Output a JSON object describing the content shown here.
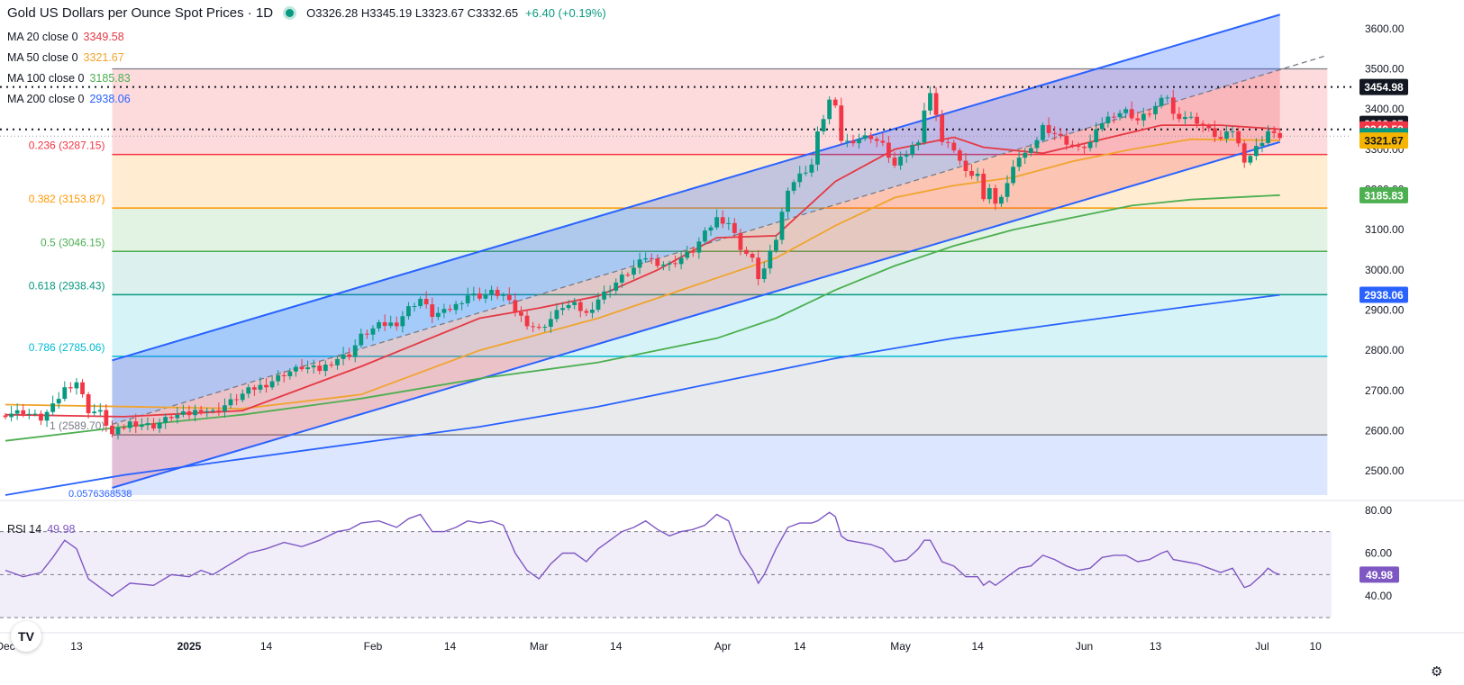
{
  "header": {
    "title": "Gold US Dollars per Ounce Spot Prices · 1D",
    "ohlc": "O3326.28 H3345.19 L3323.67 C3332.65",
    "change": "+6.40 (+0.19%)"
  },
  "ma_legend": [
    {
      "label": "MA 20 close 0",
      "value": "3349.58",
      "color": "#e53945"
    },
    {
      "label": "MA 50 close 0",
      "value": "3321.67",
      "color": "#f0a42e"
    },
    {
      "label": "MA 100 close 0",
      "value": "3185.83",
      "color": "#4caf50"
    },
    {
      "label": "MA 200 close 0",
      "value": "2938.06",
      "color": "#2962ff"
    }
  ],
  "rsi_legend": {
    "label": "RSI 14",
    "value": "49.98"
  },
  "logo_text": "TV",
  "settings_icon": "gear-icon",
  "chart_data": {
    "type": "candlestick",
    "price_axis": {
      "min": 2440,
      "max": 3640,
      "ticks": [
        "3600.00",
        "3500.00",
        "3400.00",
        "3300.00",
        "3200.00",
        "3100.00",
        "3000.00",
        "2900.00",
        "2800.00",
        "2700.00",
        "2600.00",
        "2500.00"
      ]
    },
    "x_axis": {
      "labels": [
        {
          "text": "Dec",
          "day": 0
        },
        {
          "text": "13",
          "day": 12
        },
        {
          "text": "2025",
          "day": 31
        },
        {
          "text": "14",
          "day": 44
        },
        {
          "text": "Feb",
          "day": 62
        },
        {
          "text": "14",
          "day": 75
        },
        {
          "text": "Mar",
          "day": 90
        },
        {
          "text": "14",
          "day": 103
        },
        {
          "text": "Apr",
          "day": 121
        },
        {
          "text": "14",
          "day": 134
        },
        {
          "text": "May",
          "day": 151
        },
        {
          "text": "14",
          "day": 164
        },
        {
          "text": "Jun",
          "day": 182
        },
        {
          "text": "13",
          "day": 194
        },
        {
          "text": "Jul",
          "day": 212
        },
        {
          "text": "10",
          "day": 221
        }
      ],
      "last_day": 215
    },
    "price_waypoints": [
      [
        0,
        2642
      ],
      [
        3,
        2648
      ],
      [
        6,
        2630
      ],
      [
        8,
        2660
      ],
      [
        10,
        2705
      ],
      [
        12,
        2722
      ],
      [
        14,
        2650
      ],
      [
        16,
        2645
      ],
      [
        18,
        2590
      ],
      [
        21,
        2620
      ],
      [
        25,
        2612
      ],
      [
        28,
        2636
      ],
      [
        31,
        2642
      ],
      [
        33,
        2655
      ],
      [
        35,
        2646
      ],
      [
        38,
        2672
      ],
      [
        41,
        2700
      ],
      [
        44,
        2716
      ],
      [
        47,
        2742
      ],
      [
        50,
        2758
      ],
      [
        53,
        2752
      ],
      [
        56,
        2780
      ],
      [
        58,
        2790
      ],
      [
        60,
        2835
      ],
      [
        63,
        2862
      ],
      [
        66,
        2868
      ],
      [
        68,
        2905
      ],
      [
        70,
        2928
      ],
      [
        72,
        2888
      ],
      [
        74,
        2895
      ],
      [
        76,
        2912
      ],
      [
        78,
        2938
      ],
      [
        80,
        2935
      ],
      [
        82,
        2944
      ],
      [
        84,
        2936
      ],
      [
        86,
        2898
      ],
      [
        88,
        2868
      ],
      [
        90,
        2852
      ],
      [
        92,
        2878
      ],
      [
        94,
        2910
      ],
      [
        96,
        2912
      ],
      [
        98,
        2890
      ],
      [
        100,
        2928
      ],
      [
        102,
        2955
      ],
      [
        104,
        2982
      ],
      [
        106,
        3004
      ],
      [
        108,
        3032
      ],
      [
        110,
        3018
      ],
      [
        112,
        3012
      ],
      [
        114,
        3030
      ],
      [
        116,
        3048
      ],
      [
        118,
        3090
      ],
      [
        120,
        3128
      ],
      [
        122,
        3118
      ],
      [
        124,
        3056
      ],
      [
        126,
        3024
      ],
      [
        127,
        2982
      ],
      [
        128,
        3002
      ],
      [
        130,
        3078
      ],
      [
        132,
        3205
      ],
      [
        134,
        3235
      ],
      [
        136,
        3262
      ],
      [
        137,
        3338
      ],
      [
        139,
        3422
      ],
      [
        140,
        3401
      ],
      [
        141,
        3324
      ],
      [
        142,
        3318
      ],
      [
        144,
        3328
      ],
      [
        146,
        3332
      ],
      [
        148,
        3310
      ],
      [
        150,
        3258
      ],
      [
        152,
        3290
      ],
      [
        154,
        3325
      ],
      [
        155,
        3398
      ],
      [
        156,
        3435
      ],
      [
        157,
        3392
      ],
      [
        158,
        3318
      ],
      [
        160,
        3302
      ],
      [
        162,
        3238
      ],
      [
        164,
        3236
      ],
      [
        165,
        3184
      ],
      [
        166,
        3205
      ],
      [
        167,
        3160
      ],
      [
        169,
        3216
      ],
      [
        171,
        3284
      ],
      [
        173,
        3295
      ],
      [
        175,
        3357
      ],
      [
        177,
        3340
      ],
      [
        179,
        3318
      ],
      [
        181,
        3300
      ],
      [
        183,
        3316
      ],
      [
        185,
        3368
      ],
      [
        187,
        3388
      ],
      [
        189,
        3395
      ],
      [
        191,
        3372
      ],
      [
        193,
        3392
      ],
      [
        195,
        3420
      ],
      [
        196,
        3432
      ],
      [
        197,
        3385
      ],
      [
        199,
        3382
      ],
      [
        201,
        3370
      ],
      [
        203,
        3346
      ],
      [
        205,
        3325
      ],
      [
        207,
        3348
      ],
      [
        209,
        3275
      ],
      [
        210,
        3285
      ],
      [
        212,
        3322
      ],
      [
        213,
        3345
      ],
      [
        214,
        3334
      ],
      [
        215,
        3333
      ]
    ],
    "ma20": [
      [
        0,
        2640
      ],
      [
        20,
        2635
      ],
      [
        40,
        2650
      ],
      [
        60,
        2760
      ],
      [
        80,
        2880
      ],
      [
        90,
        2905
      ],
      [
        100,
        2935
      ],
      [
        110,
        3000
      ],
      [
        120,
        3080
      ],
      [
        130,
        3085
      ],
      [
        140,
        3220
      ],
      [
        150,
        3300
      ],
      [
        160,
        3330
      ],
      [
        165,
        3305
      ],
      [
        175,
        3290
      ],
      [
        185,
        3325
      ],
      [
        195,
        3360
      ],
      [
        205,
        3360
      ],
      [
        215,
        3350
      ]
    ],
    "ma50": [
      [
        0,
        2665
      ],
      [
        20,
        2660
      ],
      [
        40,
        2655
      ],
      [
        60,
        2690
      ],
      [
        80,
        2800
      ],
      [
        100,
        2880
      ],
      [
        120,
        2980
      ],
      [
        130,
        3030
      ],
      [
        140,
        3110
      ],
      [
        150,
        3180
      ],
      [
        160,
        3210
      ],
      [
        170,
        3230
      ],
      [
        180,
        3270
      ],
      [
        190,
        3300
      ],
      [
        200,
        3325
      ],
      [
        215,
        3322
      ]
    ],
    "ma100": [
      [
        0,
        2575
      ],
      [
        20,
        2610
      ],
      [
        40,
        2640
      ],
      [
        60,
        2680
      ],
      [
        80,
        2730
      ],
      [
        100,
        2770
      ],
      [
        120,
        2830
      ],
      [
        130,
        2880
      ],
      [
        140,
        2950
      ],
      [
        150,
        3010
      ],
      [
        160,
        3060
      ],
      [
        170,
        3100
      ],
      [
        180,
        3130
      ],
      [
        190,
        3160
      ],
      [
        200,
        3175
      ],
      [
        215,
        3186
      ]
    ],
    "ma200": [
      [
        0,
        2440
      ],
      [
        20,
        2490
      ],
      [
        40,
        2530
      ],
      [
        60,
        2570
      ],
      [
        80,
        2610
      ],
      [
        100,
        2660
      ],
      [
        120,
        2720
      ],
      [
        140,
        2780
      ],
      [
        160,
        2830
      ],
      [
        180,
        2870
      ],
      [
        200,
        2910
      ],
      [
        215,
        2938
      ]
    ],
    "fib_levels": [
      {
        "ratio": "0.236",
        "price": 3287.15,
        "label": "0.236 (3287.15)",
        "color": "#f23645",
        "fill": "rgba(242,54,69,0.18)"
      },
      {
        "ratio": "0.382",
        "price": 3153.87,
        "label": "0.382 (3153.87)",
        "color": "#ff9800",
        "fill": "rgba(255,152,0,0.18)"
      },
      {
        "ratio": "0.5",
        "price": 3046.15,
        "label": "0.5 (3046.15)",
        "color": "#4caf50",
        "fill": "rgba(76,175,80,0.16)"
      },
      {
        "ratio": "0.618",
        "price": 2938.43,
        "label": "0.618 (2938.43)",
        "color": "#089981",
        "fill": "rgba(8,153,129,0.14)"
      },
      {
        "ratio": "0.786",
        "price": 2785.06,
        "label": "0.786 (2785.06)",
        "color": "#00bcd4",
        "fill": "rgba(0,188,212,0.16)"
      },
      {
        "ratio": "1",
        "price": 2589.7,
        "label": "1 (2589.70)",
        "color": "#787b86",
        "fill": "rgba(120,123,134,0.16)"
      }
    ],
    "fib_top": {
      "price": 3500.0,
      "color": "#787b86",
      "fill": "rgba(242,54,69,0.18)"
    },
    "fib_below_fill": "rgba(41,98,255,0.16)",
    "fib_bottom_price": 2440,
    "fib_extra_label": "0.0576368538",
    "fib_start_day": 18,
    "fib_end_day": 223,
    "channel": {
      "start_day": 18,
      "end_day": 215,
      "upper_start": 2775,
      "upper_end": 3635,
      "lower_start": 2458,
      "lower_end": 3318,
      "mid_start": 2616,
      "mid_end": 3498,
      "color": "#2962ff"
    },
    "dotted_levels": [
      3454.98,
      3349.58,
      3332.65
    ],
    "price_tags": [
      {
        "value": "3454.98",
        "price": 3454.98,
        "bg": "#131722",
        "fg": "#ffffff"
      },
      {
        "value": "3363.25",
        "price": 3363.25,
        "bg": "#131722",
        "fg": "#ffffff"
      },
      {
        "value": "3349.58",
        "price": 3349.58,
        "bg": "#f23645",
        "fg": "#ffffff"
      },
      {
        "value": "3332.65",
        "price": 3332.65,
        "bg": "#089981",
        "fg": "#ffffff"
      },
      {
        "value": "3321.67",
        "price": 3321.67,
        "bg": "#f5b400",
        "fg": "#131722"
      },
      {
        "value": "3185.83",
        "price": 3185.83,
        "bg": "#4caf50",
        "fg": "#ffffff"
      },
      {
        "value": "2938.06",
        "price": 2938.06,
        "bg": "#2962ff",
        "fg": "#ffffff"
      }
    ],
    "rsi": {
      "ticks": [
        "80.00",
        "60.00",
        "40.00"
      ],
      "min": 25,
      "max": 82,
      "upper_band": 70,
      "mid": 50,
      "lower_band": 30,
      "current": "49.98",
      "color": "#7e57c2",
      "waypoints": [
        [
          0,
          52
        ],
        [
          3,
          49
        ],
        [
          6,
          51
        ],
        [
          8,
          58
        ],
        [
          10,
          66
        ],
        [
          12,
          62
        ],
        [
          14,
          48
        ],
        [
          16,
          44
        ],
        [
          18,
          40
        ],
        [
          21,
          46
        ],
        [
          25,
          45
        ],
        [
          28,
          50
        ],
        [
          31,
          49
        ],
        [
          33,
          52
        ],
        [
          35,
          50
        ],
        [
          38,
          55
        ],
        [
          41,
          60
        ],
        [
          44,
          62
        ],
        [
          47,
          65
        ],
        [
          50,
          63
        ],
        [
          53,
          66
        ],
        [
          56,
          70
        ],
        [
          58,
          71
        ],
        [
          60,
          74
        ],
        [
          63,
          75
        ],
        [
          66,
          72
        ],
        [
          68,
          76
        ],
        [
          70,
          78
        ],
        [
          72,
          70
        ],
        [
          74,
          70
        ],
        [
          76,
          72
        ],
        [
          78,
          75
        ],
        [
          80,
          74
        ],
        [
          82,
          75
        ],
        [
          84,
          73
        ],
        [
          86,
          60
        ],
        [
          88,
          52
        ],
        [
          90,
          48
        ],
        [
          92,
          55
        ],
        [
          94,
          60
        ],
        [
          96,
          60
        ],
        [
          98,
          56
        ],
        [
          100,
          62
        ],
        [
          102,
          66
        ],
        [
          104,
          70
        ],
        [
          106,
          72
        ],
        [
          108,
          75
        ],
        [
          110,
          71
        ],
        [
          112,
          68
        ],
        [
          114,
          70
        ],
        [
          116,
          71
        ],
        [
          118,
          73
        ],
        [
          120,
          78
        ],
        [
          122,
          75
        ],
        [
          124,
          60
        ],
        [
          126,
          52
        ],
        [
          127,
          46
        ],
        [
          128,
          50
        ],
        [
          130,
          62
        ],
        [
          132,
          72
        ],
        [
          134,
          74
        ],
        [
          136,
          74
        ],
        [
          137,
          75
        ],
        [
          139,
          79
        ],
        [
          140,
          77
        ],
        [
          141,
          68
        ],
        [
          142,
          66
        ],
        [
          144,
          65
        ],
        [
          146,
          64
        ],
        [
          148,
          62
        ],
        [
          150,
          56
        ],
        [
          152,
          57
        ],
        [
          154,
          62
        ],
        [
          155,
          66
        ],
        [
          156,
          66
        ],
        [
          157,
          61
        ],
        [
          158,
          56
        ],
        [
          160,
          54
        ],
        [
          162,
          49
        ],
        [
          164,
          49
        ],
        [
          165,
          45
        ],
        [
          166,
          47
        ],
        [
          167,
          45
        ],
        [
          169,
          49
        ],
        [
          171,
          53
        ],
        [
          173,
          54
        ],
        [
          175,
          59
        ],
        [
          177,
          57
        ],
        [
          179,
          54
        ],
        [
          181,
          52
        ],
        [
          183,
          53
        ],
        [
          185,
          58
        ],
        [
          187,
          59
        ],
        [
          189,
          59
        ],
        [
          191,
          56
        ],
        [
          193,
          57
        ],
        [
          195,
          60
        ],
        [
          196,
          61
        ],
        [
          197,
          57
        ],
        [
          199,
          56
        ],
        [
          201,
          55
        ],
        [
          203,
          53
        ],
        [
          205,
          51
        ],
        [
          207,
          53
        ],
        [
          209,
          44
        ],
        [
          210,
          45
        ],
        [
          212,
          50
        ],
        [
          213,
          53
        ],
        [
          214,
          51
        ],
        [
          215,
          50
        ]
      ]
    }
  }
}
